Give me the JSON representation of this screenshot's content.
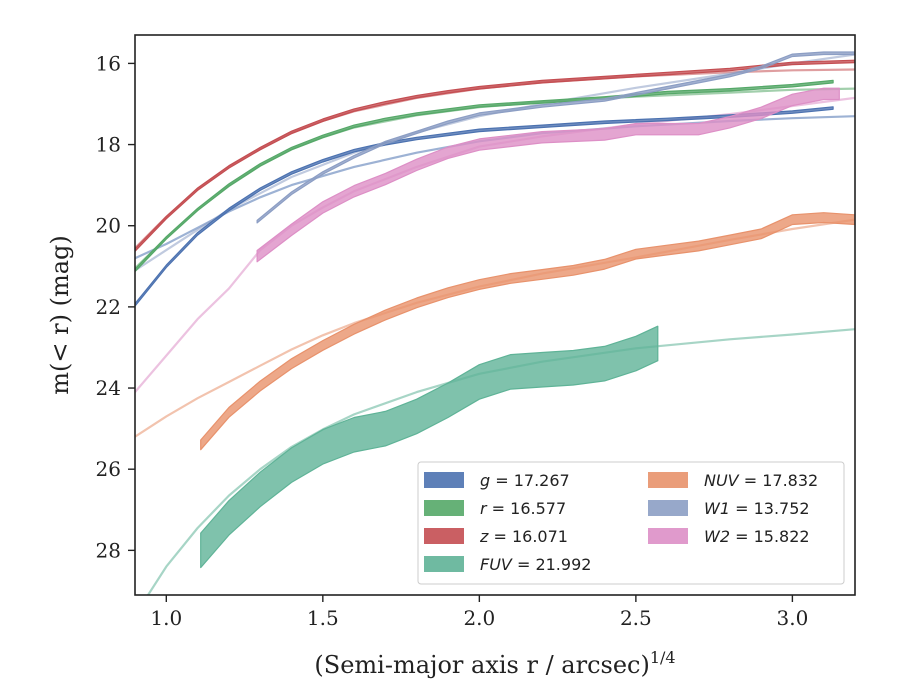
{
  "chart_data": {
    "type": "line",
    "title": "",
    "xlabel": "(Semi-major axis r / arcsec)",
    "xlabel_sup": "1/4",
    "ylabel": "m(< r) (mag)",
    "xlim": [
      0.9,
      3.2
    ],
    "ylim": [
      29.1,
      15.3
    ],
    "y_inverted": true,
    "grid": false,
    "legend_position": "lower-right",
    "xticks": [
      "1.0",
      "1.5",
      "2.0",
      "2.5",
      "3.0"
    ],
    "yticks": [
      "16",
      "18",
      "20",
      "22",
      "24",
      "26",
      "28"
    ],
    "series": [
      {
        "name": "g = 17.267",
        "color": "#4c72b0",
        "band_width": 0.06,
        "data": [
          [
            0.9,
            21.95
          ],
          [
            1.0,
            21.0
          ],
          [
            1.1,
            20.2
          ],
          [
            1.2,
            19.6
          ],
          [
            1.3,
            19.1
          ],
          [
            1.4,
            18.7
          ],
          [
            1.5,
            18.4
          ],
          [
            1.6,
            18.15
          ],
          [
            1.7,
            17.98
          ],
          [
            1.8,
            17.85
          ],
          [
            1.9,
            17.75
          ],
          [
            2.0,
            17.65
          ],
          [
            2.2,
            17.55
          ],
          [
            2.4,
            17.45
          ],
          [
            2.6,
            17.38
          ],
          [
            2.8,
            17.3
          ],
          [
            3.0,
            17.2
          ],
          [
            3.13,
            17.1
          ]
        ],
        "model": [
          [
            0.9,
            20.8
          ],
          [
            1.0,
            20.45
          ],
          [
            1.1,
            20.05
          ],
          [
            1.2,
            19.65
          ],
          [
            1.3,
            19.3
          ],
          [
            1.4,
            19.0
          ],
          [
            1.6,
            18.55
          ],
          [
            1.8,
            18.2
          ],
          [
            2.0,
            17.92
          ],
          [
            2.2,
            17.72
          ],
          [
            2.5,
            17.55
          ],
          [
            2.8,
            17.42
          ],
          [
            3.0,
            17.35
          ],
          [
            3.2,
            17.3
          ]
        ]
      },
      {
        "name": "r = 16.577",
        "color": "#55a868",
        "band_width": 0.06,
        "data": [
          [
            0.9,
            21.1
          ],
          [
            1.0,
            20.3
          ],
          [
            1.1,
            19.6
          ],
          [
            1.2,
            19.0
          ],
          [
            1.3,
            18.5
          ],
          [
            1.4,
            18.1
          ],
          [
            1.5,
            17.8
          ],
          [
            1.6,
            17.55
          ],
          [
            1.7,
            17.38
          ],
          [
            1.8,
            17.25
          ],
          [
            1.9,
            17.15
          ],
          [
            2.0,
            17.05
          ],
          [
            2.2,
            16.95
          ],
          [
            2.4,
            16.85
          ],
          [
            2.6,
            16.72
          ],
          [
            2.8,
            16.65
          ],
          [
            3.0,
            16.55
          ],
          [
            3.13,
            16.45
          ]
        ],
        "model": [
          [
            0.9,
            21.05
          ],
          [
            1.0,
            20.3
          ],
          [
            1.1,
            19.6
          ],
          [
            1.2,
            19.02
          ],
          [
            1.3,
            18.52
          ],
          [
            1.4,
            18.12
          ],
          [
            1.5,
            17.82
          ],
          [
            1.6,
            17.58
          ],
          [
            1.8,
            17.28
          ],
          [
            2.0,
            17.08
          ],
          [
            2.2,
            16.95
          ],
          [
            2.5,
            16.82
          ],
          [
            2.8,
            16.72
          ],
          [
            3.0,
            16.65
          ],
          [
            3.2,
            16.62
          ]
        ]
      },
      {
        "name": "z = 16.071",
        "color": "#c44e52",
        "band_width": 0.06,
        "data": [
          [
            0.9,
            20.6
          ],
          [
            1.0,
            19.8
          ],
          [
            1.1,
            19.1
          ],
          [
            1.2,
            18.55
          ],
          [
            1.3,
            18.1
          ],
          [
            1.4,
            17.7
          ],
          [
            1.5,
            17.4
          ],
          [
            1.6,
            17.15
          ],
          [
            1.7,
            16.97
          ],
          [
            1.8,
            16.82
          ],
          [
            1.9,
            16.7
          ],
          [
            2.0,
            16.6
          ],
          [
            2.2,
            16.45
          ],
          [
            2.4,
            16.35
          ],
          [
            2.6,
            16.25
          ],
          [
            2.8,
            16.15
          ],
          [
            3.0,
            16.0
          ],
          [
            3.2,
            15.95
          ]
        ],
        "model": [
          [
            0.9,
            20.55
          ],
          [
            1.0,
            19.78
          ],
          [
            1.1,
            19.1
          ],
          [
            1.2,
            18.55
          ],
          [
            1.3,
            18.1
          ],
          [
            1.4,
            17.72
          ],
          [
            1.5,
            17.42
          ],
          [
            1.6,
            17.18
          ],
          [
            1.8,
            16.85
          ],
          [
            2.0,
            16.62
          ],
          [
            2.2,
            16.47
          ],
          [
            2.5,
            16.32
          ],
          [
            2.8,
            16.22
          ],
          [
            3.0,
            16.17
          ],
          [
            3.2,
            16.15
          ]
        ]
      },
      {
        "name": "FUV = 21.992",
        "color": "#5fb397",
        "band_width": 0.85,
        "data": [
          [
            1.11,
            28.0
          ],
          [
            1.2,
            27.2
          ],
          [
            1.3,
            26.5
          ],
          [
            1.4,
            25.9
          ],
          [
            1.5,
            25.45
          ],
          [
            1.6,
            25.15
          ],
          [
            1.7,
            25.0
          ],
          [
            1.8,
            24.7
          ],
          [
            1.9,
            24.3
          ],
          [
            2.0,
            23.85
          ],
          [
            2.1,
            23.6
          ],
          [
            2.2,
            23.55
          ],
          [
            2.3,
            23.5
          ],
          [
            2.4,
            23.4
          ],
          [
            2.5,
            23.15
          ],
          [
            2.57,
            22.9
          ]
        ],
        "model": [
          [
            0.9,
            29.6
          ],
          [
            1.0,
            28.4
          ],
          [
            1.1,
            27.45
          ],
          [
            1.2,
            26.65
          ],
          [
            1.3,
            26.0
          ],
          [
            1.4,
            25.45
          ],
          [
            1.5,
            25.02
          ],
          [
            1.6,
            24.65
          ],
          [
            1.8,
            24.1
          ],
          [
            2.0,
            23.65
          ],
          [
            2.2,
            23.35
          ],
          [
            2.5,
            23.02
          ],
          [
            2.8,
            22.8
          ],
          [
            3.0,
            22.68
          ],
          [
            3.2,
            22.55
          ]
        ]
      },
      {
        "name": "NUV = 17.832",
        "color": "#e8926c",
        "band_width": 0.24,
        "data": [
          [
            1.11,
            25.4
          ],
          [
            1.2,
            24.6
          ],
          [
            1.3,
            23.95
          ],
          [
            1.4,
            23.4
          ],
          [
            1.5,
            22.95
          ],
          [
            1.6,
            22.55
          ],
          [
            1.7,
            22.2
          ],
          [
            1.8,
            21.9
          ],
          [
            1.9,
            21.65
          ],
          [
            2.0,
            21.45
          ],
          [
            2.1,
            21.3
          ],
          [
            2.2,
            21.2
          ],
          [
            2.3,
            21.1
          ],
          [
            2.4,
            20.95
          ],
          [
            2.5,
            20.7
          ],
          [
            2.6,
            20.6
          ],
          [
            2.7,
            20.5
          ],
          [
            2.8,
            20.35
          ],
          [
            2.9,
            20.2
          ],
          [
            3.0,
            19.85
          ],
          [
            3.1,
            19.8
          ],
          [
            3.2,
            19.85
          ]
        ],
        "model": [
          [
            0.9,
            25.2
          ],
          [
            1.0,
            24.7
          ],
          [
            1.1,
            24.25
          ],
          [
            1.2,
            23.85
          ],
          [
            1.3,
            23.45
          ],
          [
            1.4,
            23.05
          ],
          [
            1.5,
            22.7
          ],
          [
            1.6,
            22.4
          ],
          [
            1.8,
            21.9
          ],
          [
            2.0,
            21.5
          ],
          [
            2.2,
            21.18
          ],
          [
            2.5,
            20.78
          ],
          [
            2.8,
            20.35
          ],
          [
            3.0,
            20.08
          ],
          [
            3.2,
            19.85
          ]
        ]
      },
      {
        "name": "W1 = 13.752",
        "color": "#8c9ec4",
        "band_width": 0.06,
        "data": [
          [
            1.29,
            19.9
          ],
          [
            1.4,
            19.2
          ],
          [
            1.5,
            18.7
          ],
          [
            1.6,
            18.3
          ],
          [
            1.7,
            17.95
          ],
          [
            1.8,
            17.7
          ],
          [
            1.9,
            17.45
          ],
          [
            2.0,
            17.25
          ],
          [
            2.2,
            17.05
          ],
          [
            2.4,
            16.9
          ],
          [
            2.6,
            16.6
          ],
          [
            2.8,
            16.3
          ],
          [
            2.9,
            16.1
          ],
          [
            3.0,
            15.8
          ],
          [
            3.1,
            15.75
          ],
          [
            3.2,
            15.75
          ]
        ],
        "model": [
          [
            0.9,
            21.1
          ],
          [
            1.0,
            20.6
          ],
          [
            1.1,
            20.1
          ],
          [
            1.2,
            19.6
          ],
          [
            1.3,
            19.2
          ],
          [
            1.4,
            18.8
          ],
          [
            1.5,
            18.5
          ],
          [
            1.6,
            18.2
          ],
          [
            1.8,
            17.7
          ],
          [
            2.0,
            17.3
          ],
          [
            2.2,
            17.0
          ],
          [
            2.5,
            16.6
          ],
          [
            2.8,
            16.25
          ],
          [
            3.0,
            16.0
          ],
          [
            3.2,
            15.78
          ]
        ]
      },
      {
        "name": "W2 = 15.822",
        "color": "#dd8fc6",
        "band_width": 0.28,
        "data": [
          [
            1.29,
            20.75
          ],
          [
            1.4,
            20.1
          ],
          [
            1.5,
            19.55
          ],
          [
            1.6,
            19.15
          ],
          [
            1.7,
            18.85
          ],
          [
            1.8,
            18.5
          ],
          [
            1.9,
            18.2
          ],
          [
            2.0,
            18.0
          ],
          [
            2.2,
            17.82
          ],
          [
            2.4,
            17.75
          ],
          [
            2.5,
            17.62
          ],
          [
            2.7,
            17.62
          ],
          [
            2.8,
            17.45
          ],
          [
            2.9,
            17.22
          ],
          [
            3.0,
            16.9
          ],
          [
            3.1,
            16.75
          ],
          [
            3.15,
            16.75
          ]
        ],
        "model": [
          [
            0.9,
            24.1
          ],
          [
            1.0,
            23.2
          ],
          [
            1.1,
            22.3
          ],
          [
            1.2,
            21.55
          ],
          [
            1.3,
            20.6
          ],
          [
            1.4,
            20.0
          ],
          [
            1.5,
            19.55
          ],
          [
            1.6,
            19.15
          ],
          [
            1.8,
            18.55
          ],
          [
            2.0,
            18.05
          ],
          [
            2.2,
            17.8
          ],
          [
            2.5,
            17.5
          ],
          [
            2.8,
            17.25
          ],
          [
            3.0,
            17.05
          ],
          [
            3.2,
            16.85
          ]
        ]
      }
    ]
  }
}
